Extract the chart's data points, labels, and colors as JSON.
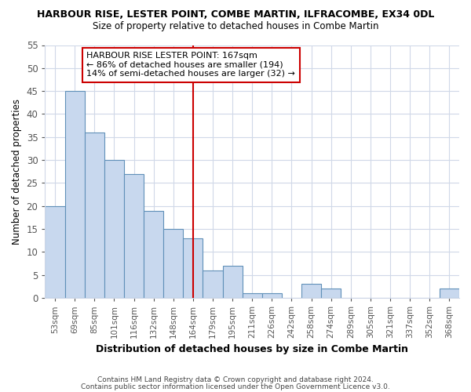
{
  "title": "HARBOUR RISE, LESTER POINT, COMBE MARTIN, ILFRACOMBE, EX34 0DL",
  "subtitle": "Size of property relative to detached houses in Combe Martin",
  "xlabel": "Distribution of detached houses by size in Combe Martin",
  "ylabel": "Number of detached properties",
  "categories": [
    "53sqm",
    "69sqm",
    "85sqm",
    "101sqm",
    "116sqm",
    "132sqm",
    "148sqm",
    "164sqm",
    "179sqm",
    "195sqm",
    "211sqm",
    "226sqm",
    "242sqm",
    "258sqm",
    "274sqm",
    "289sqm",
    "305sqm",
    "321sqm",
    "337sqm",
    "352sqm",
    "368sqm"
  ],
  "values": [
    20,
    45,
    36,
    30,
    27,
    19,
    15,
    13,
    6,
    7,
    1,
    1,
    0,
    3,
    2,
    0,
    0,
    0,
    0,
    0,
    2
  ],
  "bar_color": "#c8d8ee",
  "bar_edge_color": "#6090b8",
  "reference_line_color": "#cc0000",
  "annotation_text": "HARBOUR RISE LESTER POINT: 167sqm\n← 86% of detached houses are smaller (194)\n14% of semi-detached houses are larger (32) →",
  "annotation_box_color": "#cc0000",
  "ylim": [
    0,
    55
  ],
  "yticks": [
    0,
    5,
    10,
    15,
    20,
    25,
    30,
    35,
    40,
    45,
    50,
    55
  ],
  "bg_color": "#ffffff",
  "grid_color": "#d0d8e8",
  "footer_line1": "Contains HM Land Registry data © Crown copyright and database right 2024.",
  "footer_line2": "Contains public sector information licensed under the Open Government Licence v3.0."
}
